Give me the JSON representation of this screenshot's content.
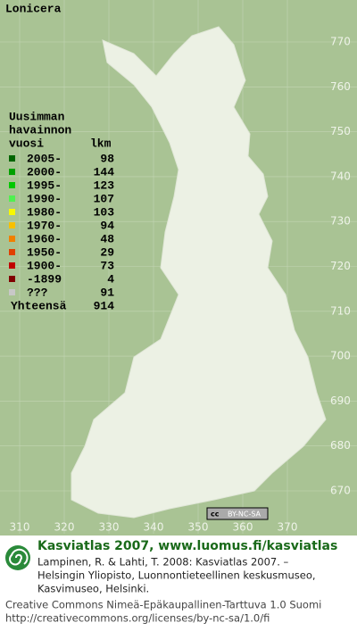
{
  "title": "Lonicera",
  "legend": {
    "heading": [
      "Uusimman",
      "havainnon",
      "vuosi"
    ],
    "count_heading": "lkm",
    "rows": [
      {
        "label": "2005-",
        "count": 98,
        "color": "#006400"
      },
      {
        "label": "2000-",
        "count": 144,
        "color": "#00a000"
      },
      {
        "label": "1995-",
        "count": 123,
        "color": "#00c800"
      },
      {
        "label": "1990-",
        "count": 107,
        "color": "#50f050"
      },
      {
        "label": "1980-",
        "count": 103,
        "color": "#f8f800"
      },
      {
        "label": "1970-",
        "count": 94,
        "color": "#f8c000"
      },
      {
        "label": "1960-",
        "count": 48,
        "color": "#f08000"
      },
      {
        "label": "1950-",
        "count": 29,
        "color": "#e04000"
      },
      {
        "label": "1900-",
        "count": 73,
        "color": "#c00000"
      },
      {
        "label": "-1899",
        "count": 4,
        "color": "#800000"
      },
      {
        "label": "???",
        "count": 91,
        "color": "#c8c8c8"
      }
    ],
    "total_label": "Yhteensä",
    "total": 914
  },
  "grid": {
    "north": [
      770,
      760,
      750,
      740,
      730,
      720,
      710,
      700,
      690,
      680,
      670
    ],
    "east": [
      310,
      320,
      330,
      340,
      350,
      360,
      370
    ]
  },
  "badge": [
    "cc",
    "BY-NC-SA"
  ],
  "footer": {
    "heading": "Kasviatlas 2007, www.luomus.fi/kasviatlas",
    "citation": [
      "Lampinen, R. & Lahti, T. 2008: Kasviatlas 2007. –",
      "Helsingin Yliopisto, Luonnontieteellinen keskusmuseo,",
      "Kasvimuseo, Helsinki."
    ],
    "license": [
      "Creative Commons Nimeä-Epäkaupallinen-Tarttuva 1.0 Suomi",
      "http://creativecommons.org/licenses/by-nc-sa/1.0/fi"
    ]
  }
}
